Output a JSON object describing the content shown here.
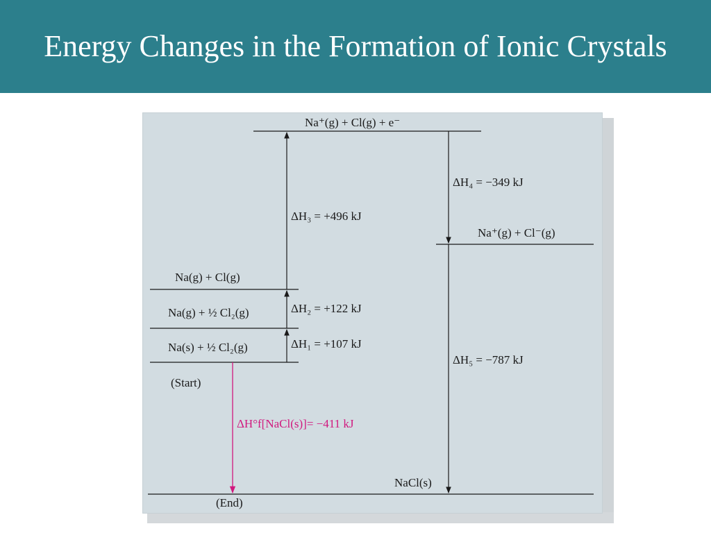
{
  "header": {
    "title": "Energy Changes in the Formation of Ionic Crystals"
  },
  "diagram": {
    "levels": {
      "ions_electron": "Na⁺(g) + Cl(g) + e⁻",
      "na_cl_gas": "Na(g) + Cl(g)",
      "na_half_cl2_gas": "Na(g) + ½ Cl₂(g)",
      "na_solid_half_cl2": "Na(s) + ½ Cl₂(g)",
      "start": "(Start)",
      "ions": "Na⁺(g) + Cl⁻(g)",
      "nacl_solid": "NaCl(s)",
      "end": "(End)"
    },
    "steps": {
      "dh1": "ΔH₁ = +107 kJ",
      "dh2": "ΔH₂ = +122 kJ",
      "dh3": "ΔH₃ = +496 kJ",
      "dh4": "ΔH₄ = −349 kJ",
      "dh5": "ΔH₅ = −787 kJ",
      "dhf": "ΔH°f[NaCl(s)]= −411 kJ"
    },
    "colors": {
      "accent": "#2c7f8c",
      "panel": "#d2dce1",
      "formation": "#d1187e"
    }
  }
}
